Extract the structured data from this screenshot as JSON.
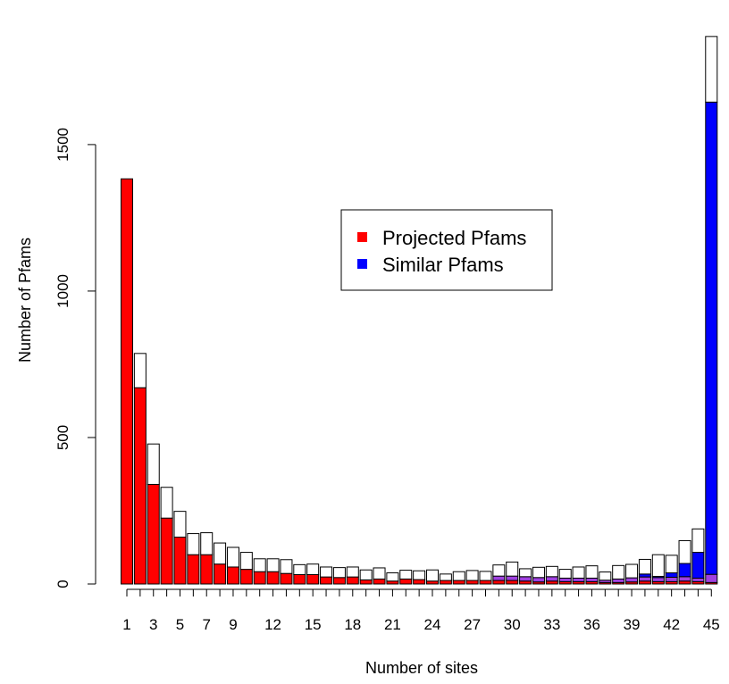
{
  "chart_data": {
    "type": "bar",
    "stacked": true,
    "xlabel": "Number of sites",
    "ylabel": "Number of Pfams",
    "ylim": [
      0,
      1960
    ],
    "y_ticks": [
      0,
      500,
      1000,
      1500
    ],
    "categories": [
      1,
      2,
      3,
      4,
      5,
      6,
      7,
      8,
      9,
      10,
      11,
      12,
      13,
      14,
      15,
      16,
      17,
      18,
      19,
      20,
      21,
      22,
      23,
      24,
      25,
      26,
      27,
      28,
      29,
      30,
      31,
      32,
      33,
      34,
      35,
      36,
      37,
      38,
      39,
      40,
      41,
      42,
      43,
      44,
      45
    ],
    "x_tick_labels": [
      "1",
      "3",
      "5",
      "7",
      "9",
      "12",
      "15",
      "18",
      "21",
      "24",
      "27",
      "30",
      "33",
      "36",
      "39",
      "42",
      "45"
    ],
    "legend": {
      "position": "top-center",
      "entries": [
        {
          "label": "Projected Pfams",
          "color": "#ff0000"
        },
        {
          "label": "Similar Pfams",
          "color": "#0000ff"
        }
      ]
    },
    "series": [
      {
        "color": "#ff0000",
        "values": [
          1383,
          670,
          340,
          225,
          160,
          100,
          100,
          68,
          58,
          50,
          42,
          42,
          36,
          32,
          32,
          24,
          22,
          24,
          14,
          17,
          10,
          17,
          15,
          10,
          12,
          12,
          12,
          12,
          12,
          12,
          10,
          7,
          10,
          8,
          8,
          8,
          5,
          5,
          7,
          10,
          8,
          8,
          10,
          8,
          5
        ]
      },
      {
        "color": "#a040e0",
        "values": [
          0,
          0,
          0,
          0,
          0,
          0,
          0,
          0,
          0,
          0,
          0,
          0,
          0,
          0,
          0,
          0,
          0,
          0,
          0,
          0,
          0,
          0,
          0,
          0,
          0,
          0,
          0,
          0,
          15,
          15,
          15,
          15,
          15,
          12,
          12,
          12,
          8,
          12,
          14,
          14,
          14,
          15,
          15,
          12,
          28
        ]
      },
      {
        "color": "#0000ff",
        "values": [
          0,
          0,
          0,
          0,
          0,
          0,
          0,
          0,
          0,
          0,
          0,
          0,
          0,
          0,
          0,
          0,
          0,
          0,
          0,
          0,
          0,
          0,
          0,
          0,
          0,
          0,
          0,
          0,
          0,
          0,
          0,
          0,
          0,
          0,
          0,
          0,
          0,
          0,
          0,
          10,
          4,
          15,
          45,
          88,
          1612
        ]
      },
      {
        "color": "#ffffff",
        "values": [
          0,
          117,
          138,
          105,
          88,
          72,
          75,
          72,
          67,
          58,
          44,
          44,
          47,
          34,
          36,
          34,
          34,
          34,
          34,
          38,
          28,
          30,
          30,
          38,
          22,
          30,
          34,
          31,
          38,
          48,
          27,
          35,
          35,
          30,
          38,
          42,
          28,
          46,
          46,
          50,
          74,
          60,
          78,
          80,
          224
        ]
      }
    ]
  }
}
